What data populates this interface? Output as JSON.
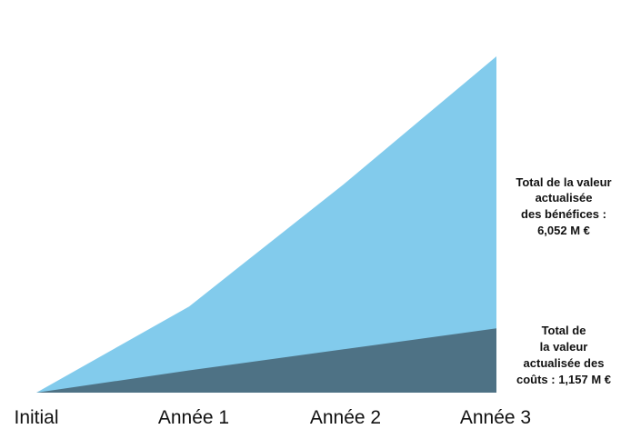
{
  "chart_data": {
    "type": "area",
    "categories": [
      "Initial",
      "Année 1",
      "Année 2",
      "Année 3"
    ],
    "series": [
      {
        "key": "benefits",
        "values": [
          0,
          1.55,
          3.75,
          6.052
        ],
        "color": "#82CBEC"
      },
      {
        "key": "costs",
        "values": [
          0,
          0.4,
          0.78,
          1.157
        ],
        "color": "#4E7285"
      }
    ],
    "ylim": [
      0,
      6.5
    ],
    "grid": false,
    "legend": "none",
    "annotations": {
      "benefits": [
        "Total de la valeur",
        "actualisée",
        "des bénéfices :",
        "6,052 M €"
      ],
      "costs": [
        "Total de",
        "la valeur",
        "actualisée des",
        "coûts : 1,157 M €"
      ]
    }
  }
}
